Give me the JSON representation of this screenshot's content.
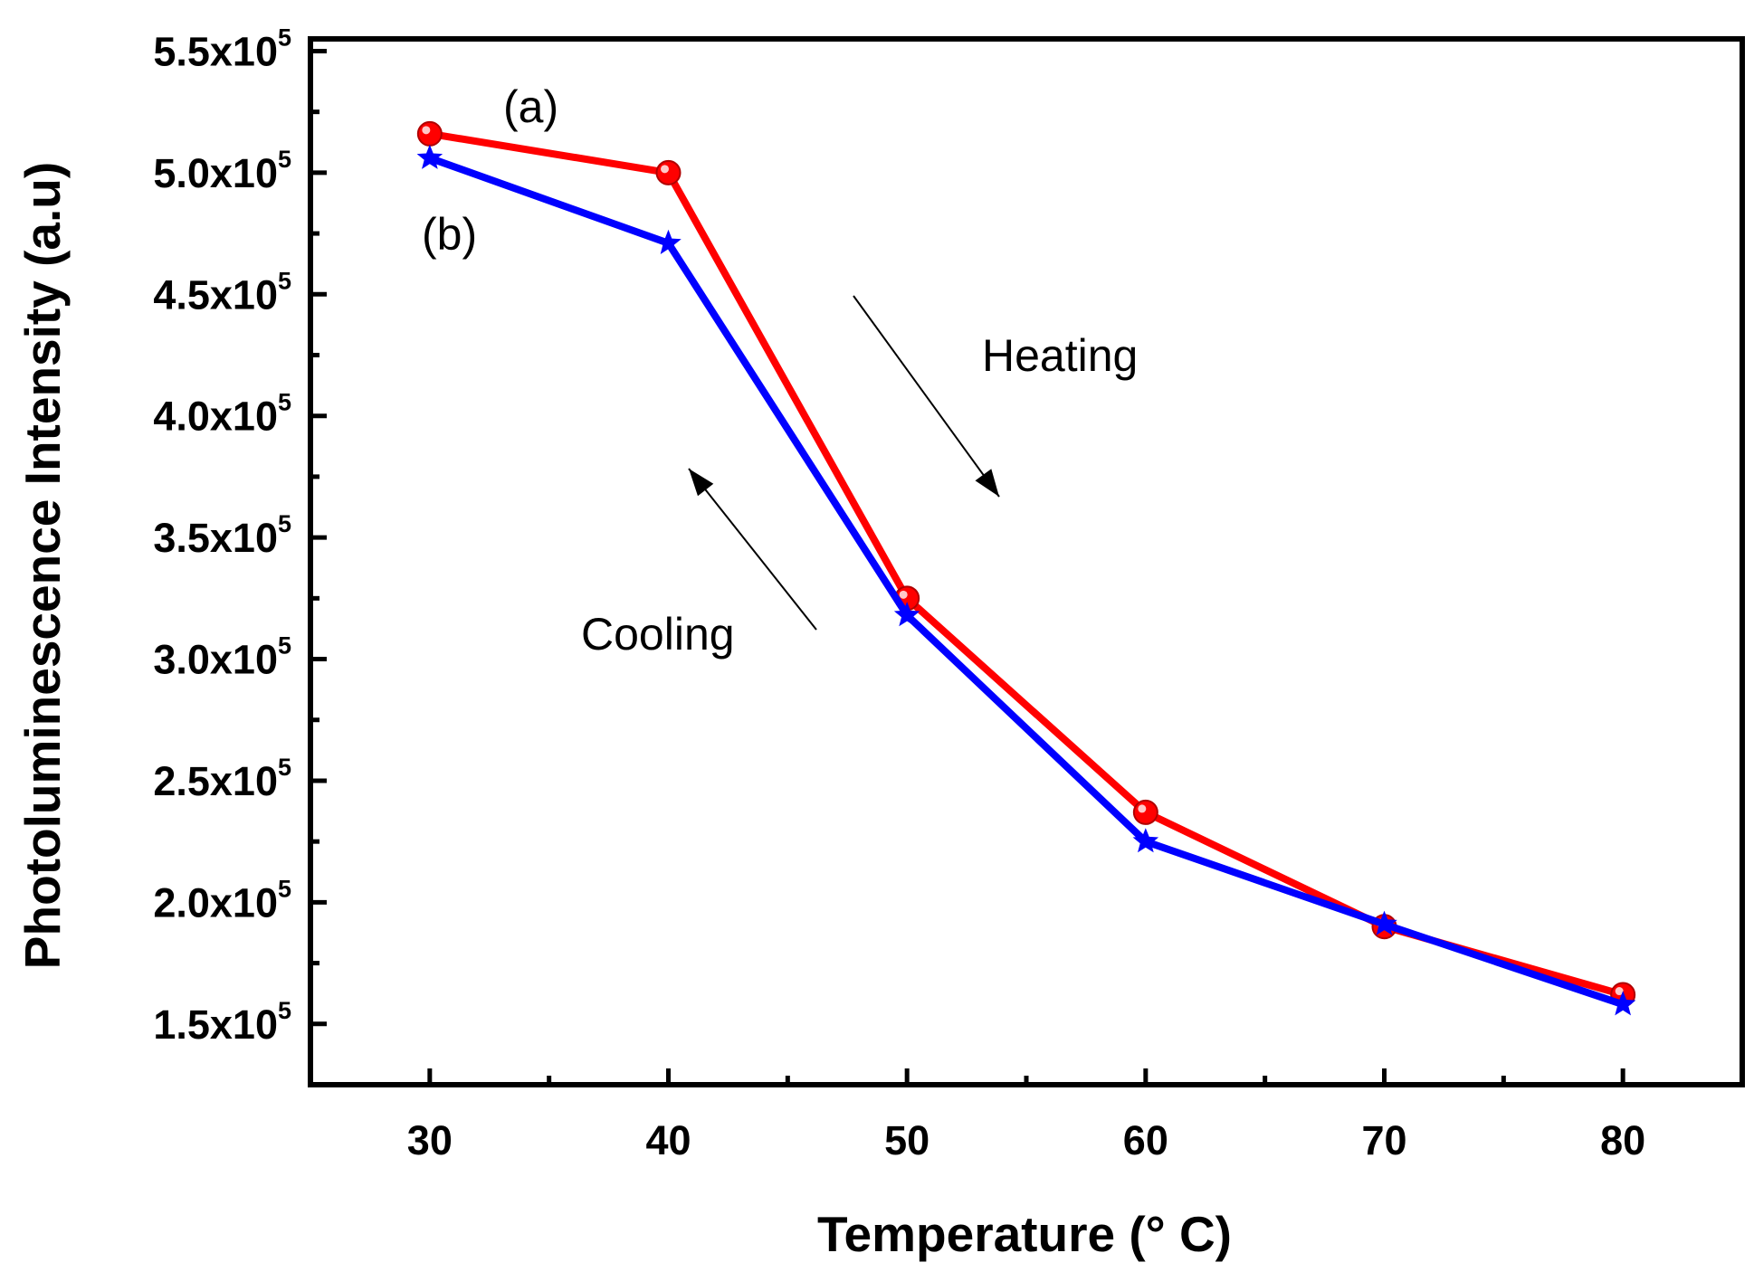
{
  "chart_data": {
    "type": "line",
    "title": "",
    "xlabel": "Temperature (° C)",
    "ylabel": "Photoluminescence Intensity (a.u)",
    "xlim": [
      25,
      85
    ],
    "ylim": [
      125000,
      555000
    ],
    "xticks": [
      30,
      40,
      50,
      60,
      70,
      80
    ],
    "yticks": [
      {
        "value": 150000,
        "mantissa": "1.5x10",
        "exp": "5"
      },
      {
        "value": 200000,
        "mantissa": "2.0x10",
        "exp": "5"
      },
      {
        "value": 250000,
        "mantissa": "2.5x10",
        "exp": "5"
      },
      {
        "value": 300000,
        "mantissa": "3.0x10",
        "exp": "5"
      },
      {
        "value": 350000,
        "mantissa": "3.5x10",
        "exp": "5"
      },
      {
        "value": 400000,
        "mantissa": "4.0x10",
        "exp": "5"
      },
      {
        "value": 450000,
        "mantissa": "4.5x10",
        "exp": "5"
      },
      {
        "value": 500000,
        "mantissa": "5.0x10",
        "exp": "5"
      },
      {
        "value": 550000,
        "mantissa": "5.5x10",
        "exp": "5"
      }
    ],
    "grid": false,
    "legend": "none",
    "x": [
      30,
      40,
      50,
      60,
      70,
      80
    ],
    "series": [
      {
        "label": "(a)",
        "color": "#ff0000",
        "marker": "circle",
        "values": [
          516000,
          500000,
          325000,
          237000,
          190000,
          162000
        ]
      },
      {
        "label": "(b)",
        "color": "#0000ff",
        "marker": "star",
        "values": [
          506000,
          471000,
          318000,
          225000,
          191000,
          158000
        ]
      }
    ],
    "annotations": [
      {
        "text": "Heating",
        "arrow": "down-right"
      },
      {
        "text": "Cooling",
        "arrow": "up-left"
      }
    ]
  }
}
